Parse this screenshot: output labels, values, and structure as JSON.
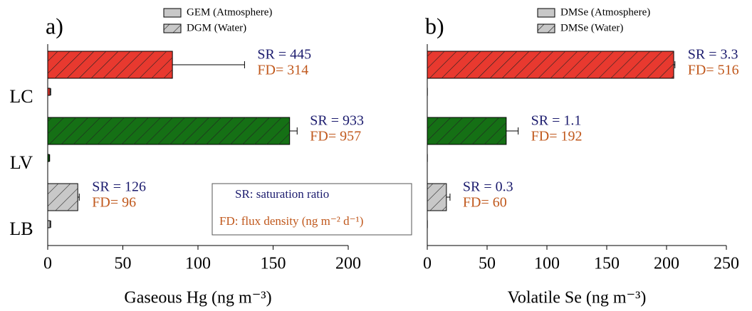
{
  "chart_data": [
    {
      "type": "bar",
      "orientation": "horizontal",
      "panel_label": "a)",
      "categories": [
        "LC",
        "LV",
        "LB"
      ],
      "series": [
        {
          "name": "GEM (Atmosphere)",
          "hatch": false,
          "colors": [
            "#e8392f",
            "#157015",
            "#c8c8c8"
          ],
          "values": [
            1.5,
            1,
            1.5
          ],
          "errors": [
            0.5,
            0.3,
            0.5
          ]
        },
        {
          "name": "DGM (Water)",
          "hatch": true,
          "colors": [
            "#e8392f",
            "#157015",
            "#c8c8c8"
          ],
          "values": [
            83,
            161,
            20
          ],
          "errors": [
            48,
            5,
            1
          ]
        }
      ],
      "annotations": [
        [
          "SR = 445",
          "FD= 314"
        ],
        [
          "SR = 933",
          "FD= 957"
        ],
        [
          "SR = 126",
          "FD= 96"
        ]
      ],
      "note": [
        "SR: saturation ratio",
        "FD: flux density (ng m⁻² d⁻¹)"
      ],
      "xlabel": "Gaseous Hg (ng m⁻³)",
      "xlim": [
        0,
        200
      ],
      "xticks": [
        0,
        50,
        100,
        150,
        200
      ]
    },
    {
      "type": "bar",
      "orientation": "horizontal",
      "panel_label": "b)",
      "categories": [
        "LC",
        "LV",
        "LB"
      ],
      "series": [
        {
          "name": "DMSe (Atmosphere)",
          "hatch": false,
          "colors": [
            "#e8392f",
            "#157015",
            "#c8c8c8"
          ],
          "values": [
            0.1,
            0.1,
            0.1
          ]
        },
        {
          "name": "DMSe (Water)",
          "hatch": true,
          "colors": [
            "#e8392f",
            "#157015",
            "#c8c8c8"
          ],
          "values": [
            206,
            66,
            16
          ],
          "errors": [
            1,
            10,
            3
          ]
        }
      ],
      "annotations": [
        [
          "SR = 3.3",
          "FD= 516"
        ],
        [
          "SR = 1.1",
          "FD= 192"
        ],
        [
          "SR = 0.3",
          "FD= 60"
        ]
      ],
      "xlabel": "Volatile Se (ng m⁻³)",
      "xlim": [
        0,
        250
      ],
      "xticks": [
        0,
        50,
        100,
        150,
        200,
        250
      ]
    }
  ]
}
